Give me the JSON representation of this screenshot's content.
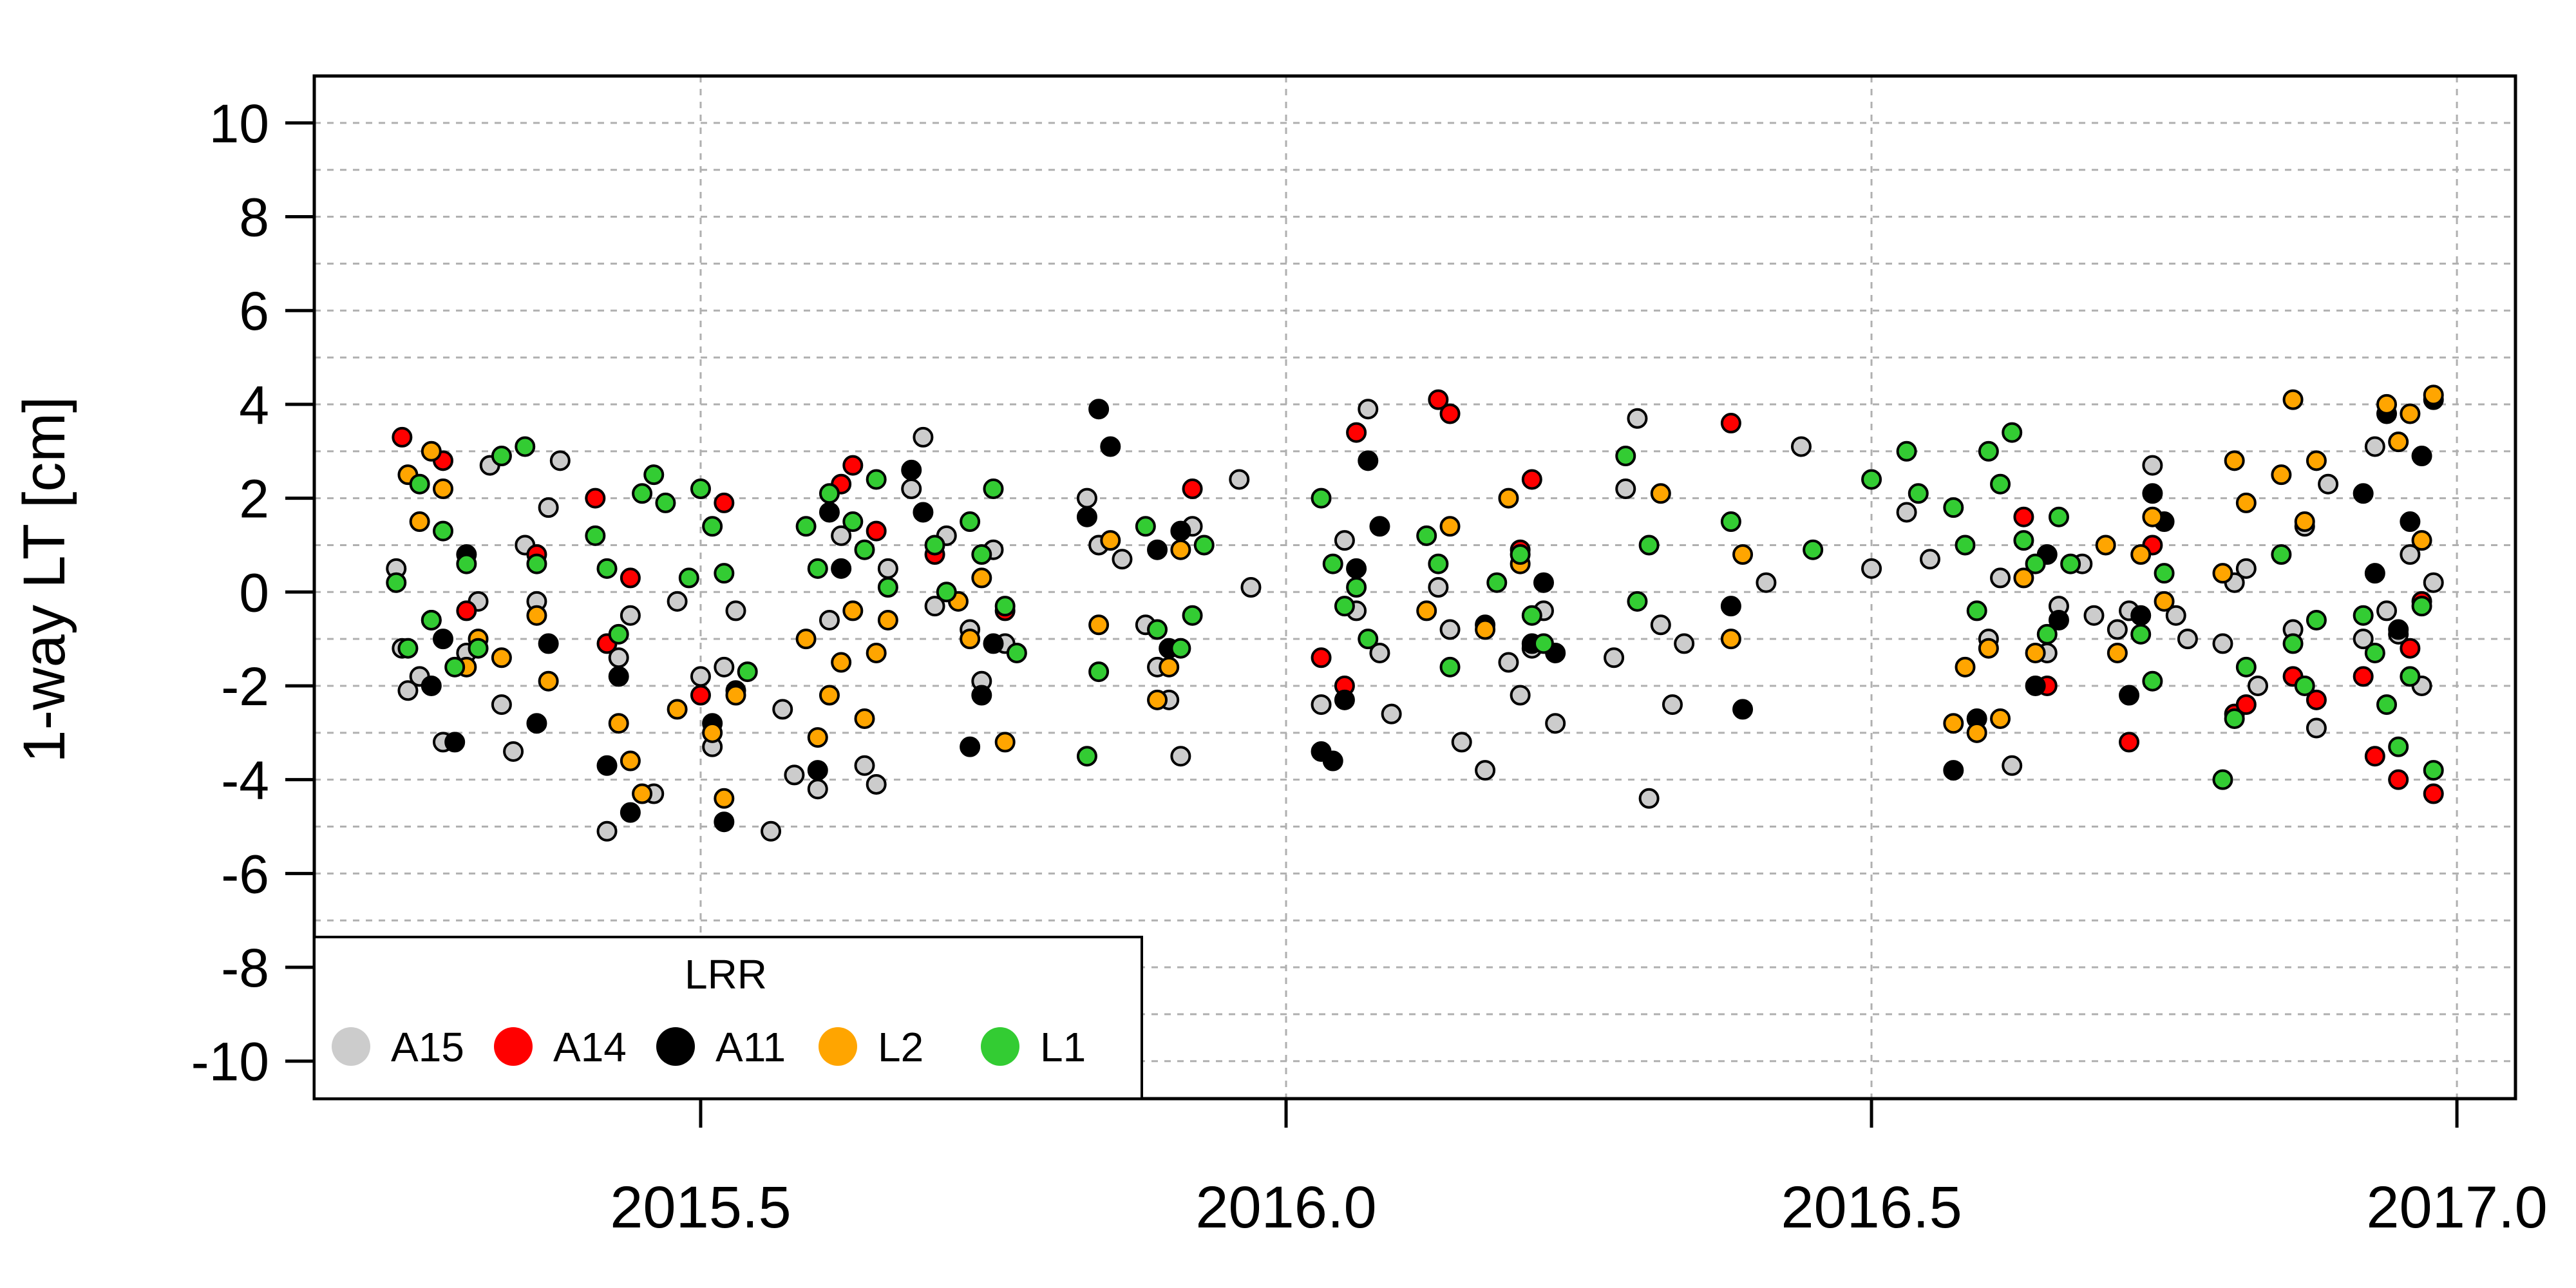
{
  "chart_data": {
    "type": "scatter",
    "title": "",
    "xlabel": "",
    "ylabel": "1-way LT [cm]",
    "xlim": [
      2015.17,
      2017.05
    ],
    "ylim": [
      -10.8,
      11.0
    ],
    "x_ticks": [
      2015.5,
      2016.0,
      2016.5,
      2017.0
    ],
    "x_tick_labels": [
      "2015.5",
      "2016.0",
      "2016.5",
      "2017.0"
    ],
    "y_ticks": [
      -10,
      -8,
      -6,
      -4,
      -2,
      0,
      2,
      4,
      6,
      8,
      10
    ],
    "y_tick_labels": [
      "-10",
      "-8",
      "-6",
      "-4",
      "-2",
      "0",
      "2",
      "4",
      "6",
      "8",
      "10"
    ],
    "grid": true,
    "legend": {
      "title": "LRR",
      "position": "bottom-left",
      "entries": [
        {
          "name": "A15",
          "color": "#cccccc"
        },
        {
          "name": "A14",
          "color": "#ff0000"
        },
        {
          "name": "A11",
          "color": "#000000"
        },
        {
          "name": "L2",
          "color": "#ffa500"
        },
        {
          "name": "L1",
          "color": "#33cc33"
        }
      ]
    },
    "series": [
      {
        "name": "A15",
        "color": "#cccccc",
        "x": [
          2015.24,
          2015.245,
          2015.25,
          2015.26,
          2015.27,
          2015.28,
          2015.3,
          2015.31,
          2015.32,
          2015.33,
          2015.34,
          2015.35,
          2015.36,
          2015.37,
          2015.38,
          2015.42,
          2015.43,
          2015.44,
          2015.46,
          2015.48,
          2015.5,
          2015.51,
          2015.52,
          2015.53,
          2015.56,
          2015.57,
          2015.58,
          2015.6,
          2015.61,
          2015.62,
          2015.64,
          2015.65,
          2015.66,
          2015.68,
          2015.69,
          2015.7,
          2015.71,
          2015.73,
          2015.74,
          2015.75,
          2015.76,
          2015.83,
          2015.84,
          2015.86,
          2015.88,
          2015.89,
          2015.9,
          2015.91,
          2015.92,
          2015.96,
          2015.97,
          2016.03,
          2016.05,
          2016.06,
          2016.07,
          2016.08,
          2016.09,
          2016.13,
          2016.14,
          2016.15,
          2016.17,
          2016.19,
          2016.2,
          2016.21,
          2016.22,
          2016.23,
          2016.28,
          2016.29,
          2016.3,
          2016.31,
          2016.32,
          2016.33,
          2016.34,
          2016.41,
          2016.44,
          2016.5,
          2016.53,
          2016.55,
          2016.6,
          2016.61,
          2016.62,
          2016.65,
          2016.66,
          2016.68,
          2016.69,
          2016.71,
          2016.72,
          2016.74,
          2016.76,
          2016.77,
          2016.8,
          2016.81,
          2016.82,
          2016.83,
          2016.86,
          2016.87,
          2016.88,
          2016.89,
          2016.92,
          2016.93,
          2016.94,
          2016.95,
          2016.96,
          2016.97,
          2016.98
        ],
        "y": [
          0.5,
          -1.2,
          -2.1,
          -1.8,
          -0.6,
          -3.2,
          -1.3,
          -0.2,
          2.7,
          -2.4,
          -3.4,
          1.0,
          -0.2,
          1.8,
          2.8,
          -5.1,
          -1.4,
          -0.5,
          -4.3,
          -0.2,
          -1.8,
          -3.3,
          -1.6,
          -0.4,
          -5.1,
          -2.5,
          -3.9,
          -4.2,
          -0.6,
          1.2,
          -3.7,
          -4.1,
          0.5,
          2.2,
          3.3,
          -0.3,
          1.2,
          -0.8,
          -1.9,
          0.9,
          -1.1,
          2.0,
          1.0,
          0.7,
          -0.7,
          -1.6,
          -2.3,
          -3.5,
          1.4,
          2.4,
          0.1,
          -2.4,
          1.1,
          -0.4,
          3.9,
          -1.3,
          -2.6,
          0.1,
          -0.8,
          -3.2,
          -3.8,
          -1.5,
          -2.2,
          -1.2,
          -0.4,
          -2.8,
          -1.4,
          2.2,
          3.7,
          -4.4,
          -0.7,
          -2.4,
          -1.1,
          0.2,
          3.1,
          0.5,
          1.7,
          0.7,
          -1.0,
          0.3,
          -3.7,
          -1.3,
          -0.3,
          0.6,
          -0.5,
          -0.8,
          -0.4,
          2.7,
          -0.5,
          -1.0,
          -1.1,
          0.2,
          0.5,
          -2.0,
          -0.8,
          1.4,
          -2.9,
          2.3,
          -1.0,
          3.1,
          -0.4,
          -0.9,
          0.8,
          -2.0,
          0.2
        ]
      },
      {
        "name": "A14",
        "color": "#ff0000",
        "x": [
          2015.245,
          2015.28,
          2015.3,
          2015.36,
          2015.41,
          2015.42,
          2015.44,
          2015.5,
          2015.52,
          2015.62,
          2015.63,
          2015.65,
          2015.7,
          2015.76,
          2015.92,
          2016.03,
          2016.05,
          2016.06,
          2016.13,
          2016.14,
          2016.2,
          2016.21,
          2016.38,
          2016.63,
          2016.65,
          2016.72,
          2016.74,
          2016.81,
          2016.82,
          2016.86,
          2016.88,
          2016.92,
          2016.93,
          2016.95,
          2016.96,
          2016.97,
          2016.98
        ],
        "y": [
          3.3,
          2.8,
          -0.4,
          0.8,
          2.0,
          -1.1,
          0.3,
          -2.2,
          1.9,
          2.3,
          2.7,
          1.3,
          0.8,
          -0.4,
          2.2,
          -1.4,
          -2.0,
          3.4,
          4.1,
          3.8,
          0.9,
          2.4,
          3.6,
          1.6,
          -2.0,
          -3.2,
          1.0,
          -2.6,
          -2.4,
          -1.8,
          -2.3,
          -1.8,
          -3.5,
          -4.0,
          -1.2,
          -0.2,
          -4.3
        ]
      },
      {
        "name": "A11",
        "color": "#000000",
        "x": [
          2015.27,
          2015.28,
          2015.29,
          2015.3,
          2015.36,
          2015.37,
          2015.42,
          2015.43,
          2015.44,
          2015.51,
          2015.52,
          2015.53,
          2015.6,
          2015.61,
          2015.62,
          2015.68,
          2015.69,
          2015.73,
          2015.74,
          2015.75,
          2015.83,
          2015.84,
          2015.85,
          2015.89,
          2015.9,
          2015.91,
          2016.03,
          2016.04,
          2016.05,
          2016.06,
          2016.07,
          2016.08,
          2016.17,
          2016.21,
          2016.22,
          2016.23,
          2016.38,
          2016.39,
          2016.57,
          2016.59,
          2016.64,
          2016.65,
          2016.66,
          2016.72,
          2016.73,
          2016.74,
          2016.75,
          2016.92,
          2016.93,
          2016.94,
          2016.95,
          2016.96,
          2016.97,
          2016.98
        ],
        "y": [
          -2.0,
          -1.0,
          -3.2,
          0.8,
          -2.8,
          -1.1,
          -3.7,
          -1.8,
          -4.7,
          -2.8,
          -4.9,
          -2.1,
          -3.8,
          1.7,
          0.5,
          2.6,
          1.7,
          -3.3,
          -2.2,
          -1.1,
          1.6,
          3.9,
          3.1,
          0.9,
          -1.2,
          1.3,
          -3.4,
          -3.6,
          -2.3,
          0.5,
          2.8,
          1.4,
          -0.7,
          -1.1,
          0.2,
          -1.3,
          -0.3,
          -2.5,
          -3.8,
          -2.7,
          -2.0,
          0.8,
          -0.6,
          -2.2,
          -0.5,
          2.1,
          1.5,
          2.1,
          0.4,
          3.8,
          -0.8,
          1.5,
          2.9,
          4.1
        ]
      },
      {
        "name": "L2",
        "color": "#ffa500",
        "x": [
          2015.25,
          2015.26,
          2015.27,
          2015.28,
          2015.3,
          2015.31,
          2015.33,
          2015.36,
          2015.37,
          2015.43,
          2015.44,
          2015.45,
          2015.48,
          2015.51,
          2015.52,
          2015.53,
          2015.59,
          2015.6,
          2015.61,
          2015.62,
          2015.63,
          2015.64,
          2015.65,
          2015.66,
          2015.72,
          2015.73,
          2015.74,
          2015.76,
          2015.84,
          2015.85,
          2015.89,
          2015.9,
          2015.91,
          2016.12,
          2016.14,
          2016.17,
          2016.19,
          2016.2,
          2016.32,
          2016.38,
          2016.39,
          2016.57,
          2016.58,
          2016.59,
          2016.6,
          2016.61,
          2016.63,
          2016.64,
          2016.7,
          2016.71,
          2016.73,
          2016.74,
          2016.75,
          2016.8,
          2016.81,
          2016.82,
          2016.85,
          2016.86,
          2016.87,
          2016.88,
          2016.94,
          2016.95,
          2016.96,
          2016.97,
          2016.98
        ],
        "y": [
          2.5,
          1.5,
          3.0,
          2.2,
          -1.6,
          -1.0,
          -1.4,
          -0.5,
          -1.9,
          -2.8,
          -3.6,
          -4.3,
          -2.5,
          -3.0,
          -4.4,
          -2.2,
          -1.0,
          -3.1,
          -2.2,
          -1.5,
          -0.4,
          -2.7,
          -1.3,
          -0.6,
          -0.2,
          -1.0,
          0.3,
          -3.2,
          -0.7,
          1.1,
          -2.3,
          -1.6,
          0.9,
          -0.4,
          1.4,
          -0.8,
          2.0,
          0.6,
          2.1,
          -1.0,
          0.8,
          -2.8,
          -1.6,
          -3.0,
          -1.2,
          -2.7,
          0.3,
          -1.3,
          1.0,
          -1.3,
          0.8,
          1.6,
          -0.2,
          0.4,
          2.8,
          1.9,
          2.5,
          4.1,
          1.5,
          2.8,
          4.0,
          3.2,
          3.8,
          1.1,
          4.2
        ]
      },
      {
        "name": "L1",
        "color": "#33cc33",
        "x": [
          2015.24,
          2015.25,
          2015.26,
          2015.27,
          2015.28,
          2015.29,
          2015.3,
          2015.31,
          2015.33,
          2015.35,
          2015.36,
          2015.41,
          2015.42,
          2015.43,
          2015.45,
          2015.46,
          2015.47,
          2015.49,
          2015.5,
          2015.51,
          2015.52,
          2015.54,
          2015.59,
          2015.6,
          2015.61,
          2015.63,
          2015.64,
          2015.65,
          2015.66,
          2015.7,
          2015.71,
          2015.73,
          2015.74,
          2015.75,
          2015.76,
          2015.77,
          2015.83,
          2015.84,
          2015.88,
          2015.89,
          2015.91,
          2015.92,
          2015.93,
          2016.03,
          2016.04,
          2016.05,
          2016.06,
          2016.07,
          2016.12,
          2016.13,
          2016.14,
          2016.18,
          2016.2,
          2016.21,
          2016.22,
          2016.29,
          2016.3,
          2016.31,
          2016.38,
          2016.45,
          2016.5,
          2016.53,
          2016.54,
          2016.57,
          2016.58,
          2016.59,
          2016.6,
          2016.61,
          2016.62,
          2016.63,
          2016.64,
          2016.65,
          2016.66,
          2016.67,
          2016.73,
          2016.74,
          2016.75,
          2016.8,
          2016.81,
          2016.82,
          2016.85,
          2016.86,
          2016.87,
          2016.88,
          2016.92,
          2016.93,
          2016.94,
          2016.95,
          2016.96,
          2016.97,
          2016.98
        ],
        "y": [
          0.2,
          -1.2,
          2.3,
          -0.6,
          1.3,
          -1.6,
          0.6,
          -1.2,
          2.9,
          3.1,
          0.6,
          1.2,
          0.5,
          -0.9,
          2.1,
          2.5,
          1.9,
          0.3,
          2.2,
          1.4,
          0.4,
          -1.7,
          1.4,
          0.5,
          2.1,
          1.5,
          0.9,
          2.4,
          0.1,
          1.0,
          0.0,
          1.5,
          0.8,
          2.2,
          -0.3,
          -1.3,
          -3.5,
          -1.7,
          1.4,
          -0.8,
          -1.2,
          -0.5,
          1.0,
          2.0,
          0.6,
          -0.3,
          0.1,
          -1.0,
          1.2,
          0.6,
          -1.6,
          0.2,
          0.8,
          -0.5,
          -1.1,
          2.9,
          -0.2,
          1.0,
          1.5,
          0.9,
          2.4,
          3.0,
          2.1,
          1.8,
          1.0,
          -0.4,
          3.0,
          2.3,
          3.4,
          1.1,
          0.6,
          -0.9,
          1.6,
          0.6,
          -0.9,
          -1.9,
          0.4,
          -4.0,
          -2.7,
          -1.6,
          0.8,
          -1.1,
          -2.0,
          -0.6,
          -0.5,
          -1.3,
          -2.4,
          -3.3,
          -1.8,
          -0.3,
          -3.8
        ]
      }
    ]
  }
}
